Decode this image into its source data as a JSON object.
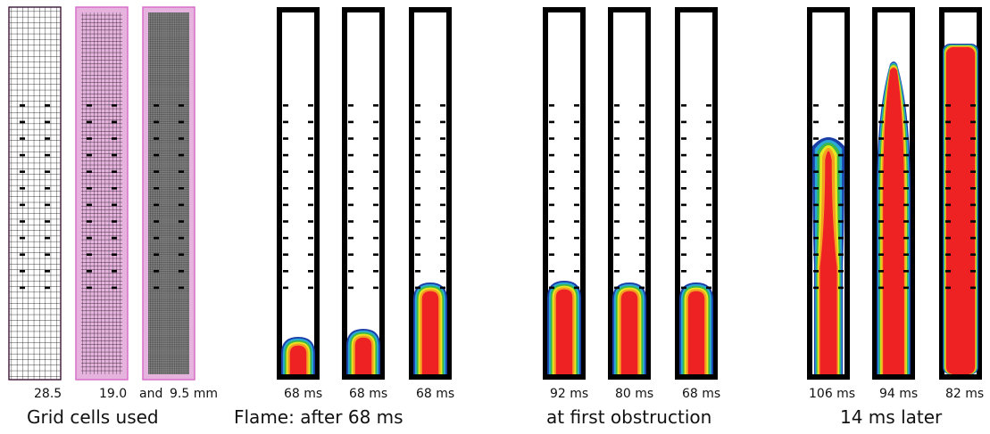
{
  "grid_panel": {
    "mesh_sizes": [
      "28.5",
      "19.0",
      "9.5 mm"
    ],
    "joiner": "and",
    "caption": "Grid cells used"
  },
  "groups": [
    {
      "caption": "Flame: after 68 ms",
      "times": [
        "68 ms",
        "68 ms",
        "68 ms"
      ]
    },
    {
      "caption": "at first obstruction",
      "times": [
        "92 ms",
        "80 ms",
        "68 ms"
      ]
    },
    {
      "caption": "14 ms later",
      "times": [
        "106 ms",
        "94 ms",
        "82 ms"
      ]
    }
  ],
  "colors": {
    "tube_wall": "#000000",
    "grid_line": "#000000",
    "grid_refined_edge": "#d86fc8",
    "flame_core": "#ee2222",
    "flame_band_orange": "#f4a020",
    "flame_band_yellow": "#e8e620",
    "flame_band_green": "#3cb84a",
    "flame_band_cyan": "#2aa8d8",
    "flame_band_blue": "#1b3fa8"
  }
}
